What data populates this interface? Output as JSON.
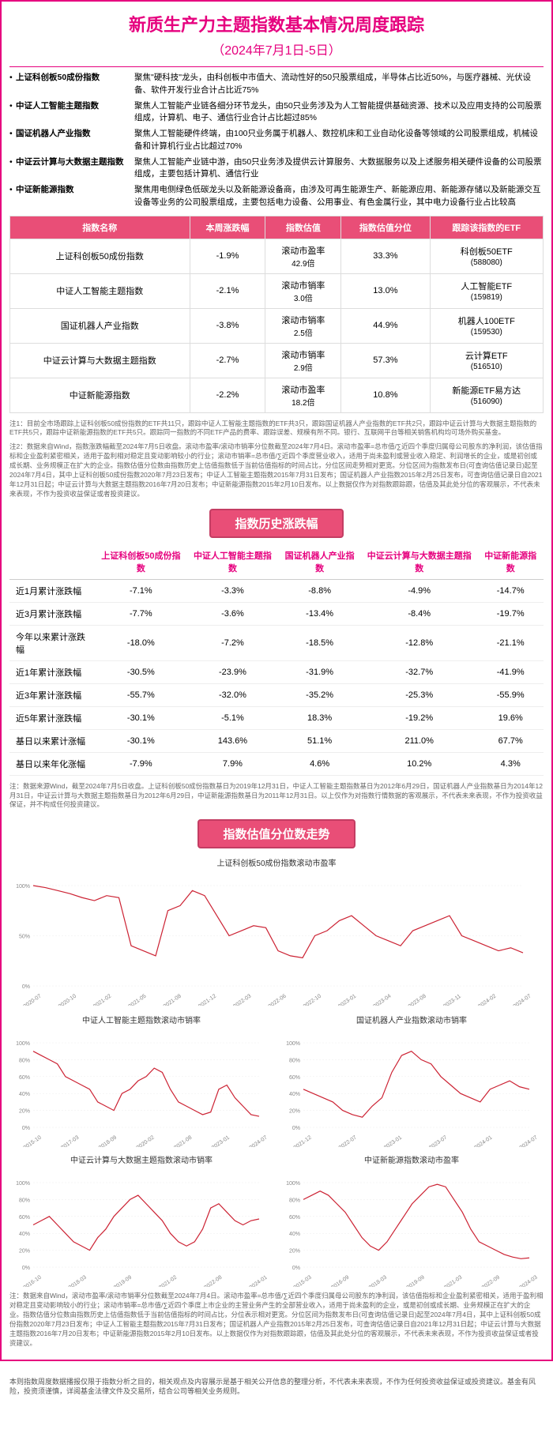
{
  "page": {
    "title": "新质生产力主题指数基本情况周度跟踪",
    "subtitle": "（2024年7月1日-5日）"
  },
  "descriptions": [
    {
      "name": "上证科创板50成份指数",
      "desc": "聚焦\"硬科技\"龙头，由科创板中市值大、流动性好的50只股票组成，半导体占比近50%，与医疗器械、光伏设备、软件开发行业合计占比近75%"
    },
    {
      "name": "中证人工智能主题指数",
      "desc": "聚焦人工智能产业链各细分环节龙头，由50只业务涉及为人工智能提供基础资源、技术以及应用支持的公司股票组成，计算机、电子、通信行业合计占比超过85%"
    },
    {
      "name": "国证机器人产业指数",
      "desc": "聚焦人工智能硬件终端，由100只业务属于机器人、数控机床和工业自动化设备等领域的公司股票组成，机械设备和计算机行业占比超过70%"
    },
    {
      "name": "中证云计算与大数据主题指数",
      "desc": "聚焦人工智能产业链中游，由50只业务涉及提供云计算服务、大数据服务以及上述服务相关硬件设备的公司股票组成，主要包括计算机、通信行业"
    },
    {
      "name": "中证新能源指数",
      "desc": "聚焦用电侧绿色低碳龙头以及新能源设备商，由涉及可再生能源生产、新能源应用、新能源存储以及新能源交互设备等业务的公司股票组成，主要包括电力设备、公用事业、有色金属行业，其中电力设备行业占比较高"
    }
  ],
  "main_table": {
    "headers": [
      "指数名称",
      "本周涨跌幅",
      "指数估值",
      "指数估值分位",
      "跟踪该指数的ETF"
    ],
    "rows": [
      {
        "name": "上证科创板50成份指数",
        "change": "-1.9%",
        "val": "滚动市盈率",
        "val2": "42.9倍",
        "pct": "33.3%",
        "etf": "科创板50ETF",
        "etf2": "(588080)"
      },
      {
        "name": "中证人工智能主题指数",
        "change": "-2.1%",
        "val": "滚动市销率",
        "val2": "3.0倍",
        "pct": "13.0%",
        "etf": "人工智能ETF",
        "etf2": "(159819)"
      },
      {
        "name": "国证机器人产业指数",
        "change": "-3.8%",
        "val": "滚动市销率",
        "val2": "2.5倍",
        "pct": "44.9%",
        "etf": "机器人100ETF",
        "etf2": "(159530)"
      },
      {
        "name": "中证云计算与大数据主题指数",
        "change": "-2.7%",
        "val": "滚动市销率",
        "val2": "2.9倍",
        "pct": "57.3%",
        "etf": "云计算ETF",
        "etf2": "(516510)"
      },
      {
        "name": "中证新能源指数",
        "change": "-2.2%",
        "val": "滚动市盈率",
        "val2": "18.2倍",
        "pct": "10.8%",
        "etf": "新能源ETF易方达",
        "etf2": "(516090)"
      }
    ]
  },
  "note1": "注1：目前全市场跟踪上证科创板50成份指数的ETF共11只，跟踪中证人工智能主题指数的ETF共3只，跟踪国证机器人产业指数的ETF共2只，跟踪中证云计算与大数据主题指数的ETF共5只，跟踪中证新能源指数的ETF共5只。跟踪同一指数的不同ETF产品的费率、跟踪误差、规模有所不同。银行、互联网平台等相关销售机构均可场外购买基金。",
  "note2": "注2：数据来自Wind，指数涨跌幅截至2024年7月5日收盘。滚动市盈率/滚动市销率分位数截至2024年7月4日。滚动市盈率=总市值/∑近四个季度归属母公司股东的净利润，该估值指标和企业盈利紧密相关，适用于盈利相对稳定且变动影响较小的行业；滚动市销率=总市值/∑近四个季度营业收入，适用于尚未盈利或营业收入稳定、利润增长的企业，或是初创或成长期、业务规模正在扩大的企业。指数估值分位数由指数历史上估值指数低于当前估值指标的时间占比，分位区间走势相对更宽。分位区间为指数发布日(可查询估值记录日)起至2024年7月4日，其中上证科创板50成份指数2020年7月23日发布；中证人工智能主题指数2015年7月31日发布；国证机器人产业指数2015年2月25日发布，可查询估值记录日自2021年12月31日起；中证云计算与大数据主题指数2016年7月20日发布；中证新能源指数2015年2月10日发布。以上数据仅作为对指数跟踪跟，估值及其此处分位的客观展示，不代表未来表现，不作为投资收益保证或者投资建议。",
  "section_history": "指数历史涨跌幅",
  "hist_table": {
    "headers": [
      "",
      "上证科创板50成份指数",
      "中证人工智能主题指数",
      "国证机器人产业指数",
      "中证云计算与大数据主题指数",
      "中证新能源指数"
    ],
    "rows": [
      {
        "label": "近1月累计涨跌幅",
        "v": [
          "-7.1%",
          "-3.3%",
          "-8.8%",
          "-4.9%",
          "-14.7%"
        ]
      },
      {
        "label": "近3月累计涨跌幅",
        "v": [
          "-7.7%",
          "-3.6%",
          "-13.4%",
          "-8.4%",
          "-19.7%"
        ]
      },
      {
        "label": "今年以来累计涨跌幅",
        "v": [
          "-18.0%",
          "-7.2%",
          "-18.5%",
          "-12.8%",
          "-21.1%"
        ]
      },
      {
        "label": "近1年累计涨跌幅",
        "v": [
          "-30.5%",
          "-23.9%",
          "-31.9%",
          "-32.7%",
          "-41.9%"
        ]
      },
      {
        "label": "近3年累计涨跌幅",
        "v": [
          "-55.7%",
          "-32.0%",
          "-35.2%",
          "-25.3%",
          "-55.9%"
        ]
      },
      {
        "label": "近5年累计涨跌幅",
        "v": [
          "-30.1%",
          "-5.1%",
          "18.3%",
          "-19.2%",
          "19.6%"
        ]
      },
      {
        "label": "基日以来累计涨幅",
        "v": [
          "-30.1%",
          "143.6%",
          "51.1%",
          "211.0%",
          "67.7%"
        ]
      },
      {
        "label": "基日以来年化涨幅",
        "v": [
          "-7.9%",
          "7.9%",
          "4.6%",
          "10.2%",
          "4.3%"
        ]
      }
    ]
  },
  "note3": "注：数据来源Wind，截至2024年7月5日收盘。上证科创板50成份指数基日为2019年12月31日，中证人工智能主题指数基日为2012年6月29日，国证机器人产业指数基日为2014年12月31日，中证云计算与大数据主题指数基日为2012年6月29日，中证新能源指数基日为2011年12月31日。以上仅作为对指数行情数据的客观展示，不代表未来表现，不作为投资收益保证，并不构成任何投资建议。",
  "section_trend": "指数估值分位数走势",
  "charts": {
    "line_color": "#cc2233",
    "grid_color": "#eeeeee",
    "axis_color": "#888888",
    "full": {
      "title": "上证科创板50成份指数滚动市盈率",
      "ylim": [
        0,
        100
      ],
      "yticks": [
        0,
        50,
        100
      ],
      "xlabels": [
        "2020-07",
        "2020-10",
        "2021-02",
        "2021-05",
        "2021-08",
        "2021-12",
        "2022-03",
        "2022-06",
        "2022-10",
        "2023-01",
        "2023-04",
        "2023-08",
        "2023-11",
        "2024-02",
        "2024-07"
      ],
      "data": [
        100,
        98,
        95,
        92,
        88,
        85,
        90,
        88,
        40,
        35,
        30,
        75,
        80,
        95,
        90,
        70,
        50,
        55,
        60,
        58,
        35,
        30,
        28,
        50,
        55,
        65,
        70,
        60,
        50,
        45,
        40,
        55,
        60,
        65,
        70,
        50,
        45,
        40,
        35,
        38,
        33
      ]
    },
    "small": [
      {
        "title": "中证人工智能主题指数滚动市销率",
        "ylim": [
          0,
          100
        ],
        "yticks": [
          0,
          20,
          40,
          60,
          80,
          100
        ],
        "xlabels": [
          "2015-10",
          "2017-03",
          "2018-09",
          "2020-02",
          "2021-08",
          "2023-01",
          "2024-07"
        ],
        "data": [
          90,
          85,
          80,
          75,
          60,
          55,
          50,
          45,
          30,
          25,
          20,
          40,
          45,
          55,
          60,
          70,
          65,
          45,
          30,
          25,
          20,
          15,
          18,
          45,
          50,
          35,
          25,
          15,
          13
        ]
      },
      {
        "title": "国证机器人产业指数滚动市销率",
        "ylim": [
          0,
          100
        ],
        "yticks": [
          0,
          20,
          40,
          60,
          80,
          100
        ],
        "xlabels": [
          "2021-12",
          "2022-07",
          "2023-01",
          "2023-07",
          "2024-01",
          "2024-07"
        ],
        "data": [
          45,
          40,
          35,
          30,
          20,
          15,
          12,
          25,
          35,
          65,
          85,
          90,
          80,
          75,
          60,
          50,
          40,
          35,
          30,
          45,
          50,
          55,
          48,
          45
        ]
      },
      {
        "title": "中证云计算与大数据主题指数滚动市销率",
        "ylim": [
          0,
          100
        ],
        "yticks": [
          0,
          20,
          40,
          60,
          80,
          100
        ],
        "xlabels": [
          "2016-10",
          "2018-03",
          "2019-09",
          "2021-02",
          "2022-08",
          "2024-01"
        ],
        "data": [
          50,
          55,
          60,
          50,
          40,
          30,
          25,
          20,
          35,
          45,
          60,
          70,
          80,
          85,
          75,
          65,
          55,
          40,
          30,
          25,
          30,
          45,
          70,
          75,
          65,
          55,
          50,
          55,
          57
        ]
      },
      {
        "title": "中证新能源指数滚动市盈率",
        "ylim": [
          0,
          100
        ],
        "yticks": [
          0,
          20,
          40,
          60,
          80,
          100
        ],
        "xlabels": [
          "2015-03",
          "2016-09",
          "2018-03",
          "2019-09",
          "2021-03",
          "2022-09",
          "2024-03"
        ],
        "data": [
          80,
          85,
          90,
          85,
          75,
          65,
          50,
          35,
          25,
          20,
          30,
          45,
          60,
          75,
          85,
          95,
          98,
          95,
          80,
          65,
          45,
          30,
          25,
          20,
          15,
          12,
          10,
          11
        ]
      }
    ]
  },
  "note4": "注：数据来自Wind，滚动市盈率/滚动市销率分位数截至2024年7月4日。滚动市盈率=总市值/∑近四个季度归属母公司股东的净利润，该估值指标和企业盈利紧密相关，适用于盈利相对稳定且变动影响较小的行业；滚动市销率=总市值/∑近四个季度上市企业的主营业务产生的全部营业收入，适用于尚未盈利的企业，或是初创或成长期、业务规模正在扩大的企业。指数估值分位数由指数历史上估值指数低于当前估值指标的时间占比，分位表示相对更宽。分位区间为指数发布日(可查询估值记录日)起至2024年7月4日，其中上证科创板50成份指数2020年7月23日发布；中证人工智能主题指数2015年7月31日发布；国证机器人产业指数2015年2月25日发布，可查询估值记录日自2021年12月31日起；中证云计算与大数据主题指数2016年7月20日发布；中证新能源指数2015年2月10日发布。以上数据仅作为对指数跟踪跟，估值及其此处分位的客观展示，不代表未来表现，不作为投资收益保证或者投资建议。",
  "footer": "本则指数周度数据播报仅限于指数分析之目的，相关观点及内容展示是基于相关公开信息的整理分析，不代表未来表现，不作为任何投资收益保证或投资建议。基金有风险，投资须谨慎，详阅基金法律文件及交易所，结合公司等相关业务规则。"
}
